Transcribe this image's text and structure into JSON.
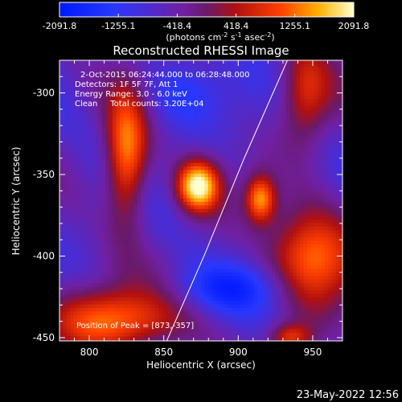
{
  "colorbar": {
    "tick_labels": [
      "-2091.8",
      "-1255.1",
      "-418.4",
      "418.4",
      "1255.1",
      "2091.8"
    ],
    "range": [
      -2091.8,
      2091.8
    ],
    "unit_label": "(photons cm",
    "unit_exp1": "-2",
    "unit_mid": " s",
    "unit_exp2": "-1",
    "unit_tail": " asec",
    "unit_exp3": "-2",
    "unit_close": ")"
  },
  "chart_data": {
    "type": "heatmap",
    "title": "Reconstructed RHESSI Image",
    "xlabel": "Heliocentric X (arcsec)",
    "ylabel": "Heliocentric Y (arcsec)",
    "xlim": [
      780,
      970
    ],
    "ylim": [
      -452,
      -280
    ],
    "x_ticks": [
      800,
      850,
      900,
      950
    ],
    "y_ticks": [
      -300,
      -350,
      -400,
      -450
    ],
    "annotations": [
      "2-Oct-2015 06:24:44.000 to 06:28:48.000",
      "Detectors: 1F 5F 7F, Att 1",
      "Energy Range: 3.0 - 6.0 keV",
      "Clean     Total counts: 3.20E+04"
    ],
    "peak_label": "Position of Peak = [873,-357]",
    "peak": [
      873,
      -357
    ],
    "sources": [
      {
        "x": 873,
        "y": -357,
        "sx": 10,
        "sy": 11,
        "amp": 2091.8
      },
      {
        "x": 825,
        "y": -340,
        "sx": 10,
        "sy": 28,
        "amp": 1500
      },
      {
        "x": 915,
        "y": -365,
        "sx": 7,
        "sy": 10,
        "amp": 1300
      },
      {
        "x": 950,
        "y": -400,
        "sx": 20,
        "sy": 22,
        "amp": 1350
      },
      {
        "x": 815,
        "y": -440,
        "sx": 32,
        "sy": 14,
        "amp": 1250
      },
      {
        "x": 945,
        "y": -300,
        "sx": 12,
        "sy": 22,
        "amp": 750
      },
      {
        "x": 935,
        "y": -450,
        "sx": 10,
        "sy": 6,
        "amp": 800
      }
    ],
    "limb_curve": [
      [
        852,
        -452
      ],
      [
        877,
        -400
      ],
      [
        904,
        -340
      ],
      [
        933,
        -280
      ]
    ],
    "grid": false
  },
  "timestamp": "23-May-2022 12:56"
}
